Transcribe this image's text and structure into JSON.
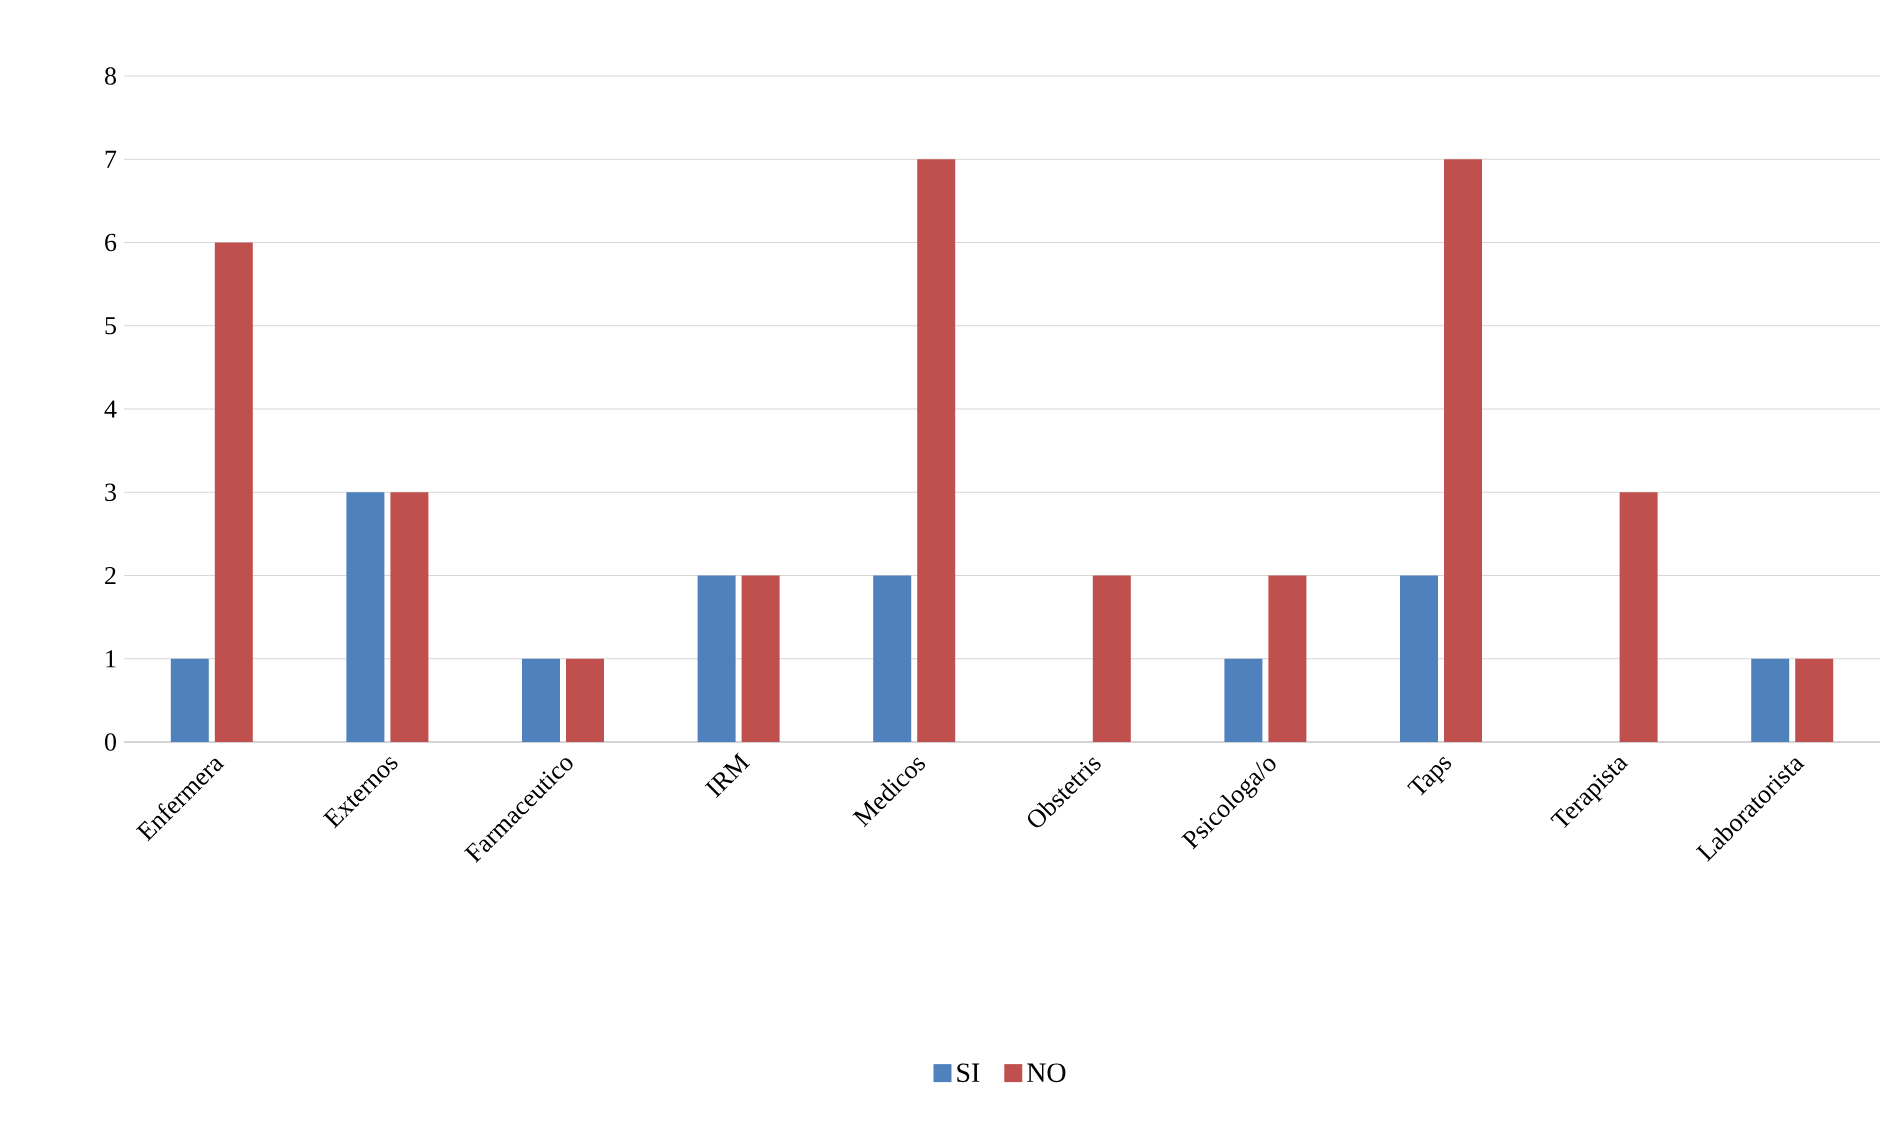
{
  "chart_data": {
    "type": "bar",
    "categories": [
      "Enfermera",
      "Externos",
      "Farmaceutico",
      "IRM",
      "Medicos",
      "Obstetris",
      "Psicologa/o",
      "Taps",
      "Terapista",
      "Laboratorista"
    ],
    "series": [
      {
        "name": "SI",
        "color": "#4f81bd",
        "values": [
          1,
          3,
          1,
          2,
          2,
          0,
          1,
          2,
          0,
          1
        ]
      },
      {
        "name": "NO",
        "color": "#c0504d",
        "values": [
          6,
          3,
          1,
          2,
          7,
          2,
          2,
          7,
          3,
          1
        ]
      }
    ],
    "ylim": [
      0,
      8
    ],
    "yticks": [
      0,
      1,
      2,
      3,
      4,
      5,
      6,
      7,
      8
    ],
    "grid": "y",
    "legend": "bottom"
  }
}
